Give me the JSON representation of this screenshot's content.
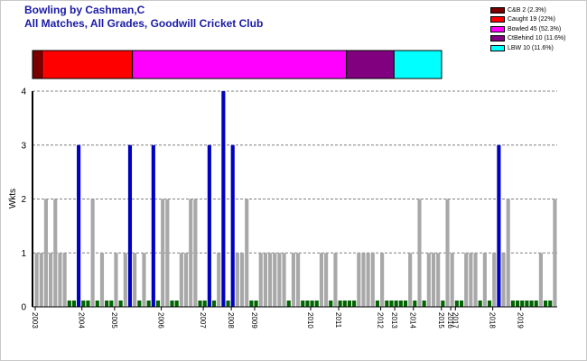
{
  "header": {
    "title": "Bowling by Cashman,C",
    "subtitle": "All Matches, All Grades, Goodwill Cricket Club"
  },
  "legend": [
    {
      "label": "C&B 2 (2.3%)",
      "color": "#7a0000"
    },
    {
      "label": "Caught 19 (22%)",
      "color": "#ff0000"
    },
    {
      "label": "Bowled 45 (52.3%)",
      "color": "#ff00ff"
    },
    {
      "label": "CtBehind 10 (11.6%)",
      "color": "#800080"
    },
    {
      "label": "LBW 10 (11.6%)",
      "color": "#00ffff"
    }
  ],
  "chart_data": [
    {
      "type": "bar",
      "title": "Dismissal types",
      "stacked": true,
      "values": [
        2,
        19,
        45,
        10,
        10
      ],
      "categories": [
        "C&B",
        "Caught",
        "Bowled",
        "CtBehind",
        "LBW"
      ],
      "colors": [
        "#7a0000",
        "#ff0000",
        "#ff00ff",
        "#800080",
        "#00ffff"
      ]
    },
    {
      "type": "bar",
      "ylabel": "Wkts",
      "ylim": [
        0,
        4
      ],
      "yticks": [
        "0",
        "1",
        "2",
        "3",
        "4"
      ],
      "grid": true,
      "colors": {
        "normal": "#a8a8a8",
        "highlight": "#0000c0",
        "zero": "#006400"
      },
      "highlight_rule": "3 or more wickets",
      "x_labels": [
        {
          "label": "2003",
          "index": 0
        },
        {
          "label": "2004",
          "index": 10
        },
        {
          "label": "2005",
          "index": 17
        },
        {
          "label": "2006",
          "index": 27
        },
        {
          "label": "2007",
          "index": 36
        },
        {
          "label": "2008",
          "index": 42
        },
        {
          "label": "2009",
          "index": 47
        },
        {
          "label": "2010",
          "index": 59
        },
        {
          "label": "2011",
          "index": 65
        },
        {
          "label": "2012",
          "index": 74
        },
        {
          "label": "2013",
          "index": 77
        },
        {
          "label": "2014",
          "index": 81
        },
        {
          "label": "2015",
          "index": 87
        },
        {
          "label": "2016",
          "index": 89
        },
        {
          "label": "2017",
          "index": 90
        },
        {
          "label": "2018",
          "index": 98
        },
        {
          "label": "2019",
          "index": 104
        }
      ],
      "values": [
        1,
        1,
        2,
        1,
        2,
        1,
        1,
        0,
        0,
        3,
        0,
        0,
        2,
        0,
        1,
        0,
        0,
        1,
        0,
        1,
        3,
        1,
        0,
        1,
        0,
        3,
        0,
        2,
        2,
        0,
        0,
        1,
        1,
        2,
        2,
        0,
        0,
        3,
        0,
        1,
        4,
        0,
        3,
        1,
        1,
        2,
        0,
        0,
        1,
        1,
        1,
        1,
        1,
        1,
        0,
        1,
        1,
        0,
        0,
        0,
        0,
        1,
        1,
        0,
        1,
        0,
        0,
        0,
        0,
        1,
        1,
        1,
        1,
        0,
        1,
        0,
        0,
        0,
        0,
        0,
        1,
        0,
        2,
        0,
        1,
        1,
        1,
        0,
        2,
        1,
        0,
        0,
        1,
        1,
        1,
        0,
        1,
        0,
        1,
        3,
        1,
        2,
        0,
        0,
        0,
        0,
        0,
        0,
        1,
        0,
        0,
        2
      ]
    }
  ]
}
